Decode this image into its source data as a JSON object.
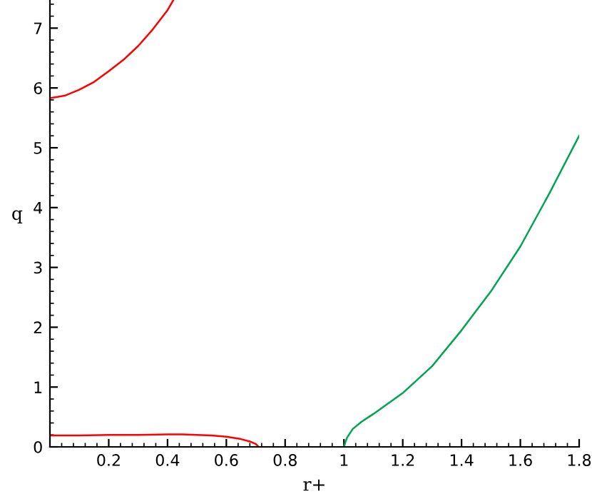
{
  "chart_data": {
    "type": "line",
    "xlabel": "r+",
    "ylabel": "q",
    "series": [
      {
        "color": "#ff0000",
        "x": [
          0,
          0.05,
          0.1,
          0.15,
          0.2,
          0.25,
          0.3,
          0.35,
          0.4,
          0.42
        ],
        "values": [
          5.83,
          5.87,
          5.97,
          6.1,
          6.28,
          6.47,
          6.7,
          6.98,
          7.3,
          7.47
        ]
      },
      {
        "color": "#ff0000",
        "x": [
          0,
          0.1,
          0.2,
          0.3,
          0.4,
          0.45,
          0.5,
          0.55,
          0.6,
          0.65,
          0.68,
          0.7,
          0.71
        ],
        "values": [
          0.19,
          0.19,
          0.2,
          0.2,
          0.21,
          0.21,
          0.2,
          0.19,
          0.17,
          0.13,
          0.09,
          0.05,
          0
        ]
      },
      {
        "color": "#00a550",
        "x": [
          1,
          1.005,
          1.01,
          1.03,
          1.06,
          1.1,
          1.2,
          1.3,
          1.4,
          1.5,
          1.6,
          1.7,
          1.8
        ],
        "values": [
          0,
          0.08,
          0.15,
          0.3,
          0.42,
          0.55,
          0.9,
          1.35,
          1.95,
          2.6,
          3.35,
          4.25,
          5.2
        ]
      }
    ],
    "xlim": [
      0,
      1.8
    ],
    "ylim": [
      0,
      7.47
    ],
    "xticks": [
      0.2,
      0.4,
      0.6,
      0.8,
      1,
      1.2,
      1.4,
      1.6,
      1.8
    ],
    "yticks": [
      0,
      1,
      2,
      3,
      4,
      5,
      6,
      7
    ]
  }
}
